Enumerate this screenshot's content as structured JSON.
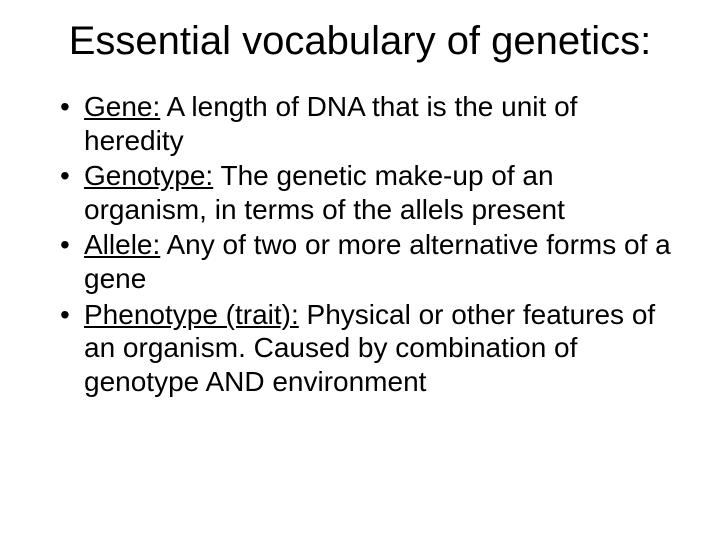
{
  "background_color": "#ffffff",
  "text_color": "#000000",
  "font_family": "Arial",
  "title": {
    "text": "Essential vocabulary of genetics:",
    "fontsize": 40,
    "align": "center"
  },
  "bullets": {
    "fontsize": 28,
    "items": [
      {
        "term": "Gene:",
        "definition": " A length of DNA that is the unit of heredity"
      },
      {
        "term": "Genotype:",
        "definition": " The genetic make-up of an organism, in terms of the allels present"
      },
      {
        "term": "Allele:",
        "definition": " Any of two or more alternative forms of a gene"
      },
      {
        "term": "Phenotype (trait):",
        "definition": " Physical or other features of an organism.  Caused by combination of genotype AND environment"
      }
    ]
  }
}
